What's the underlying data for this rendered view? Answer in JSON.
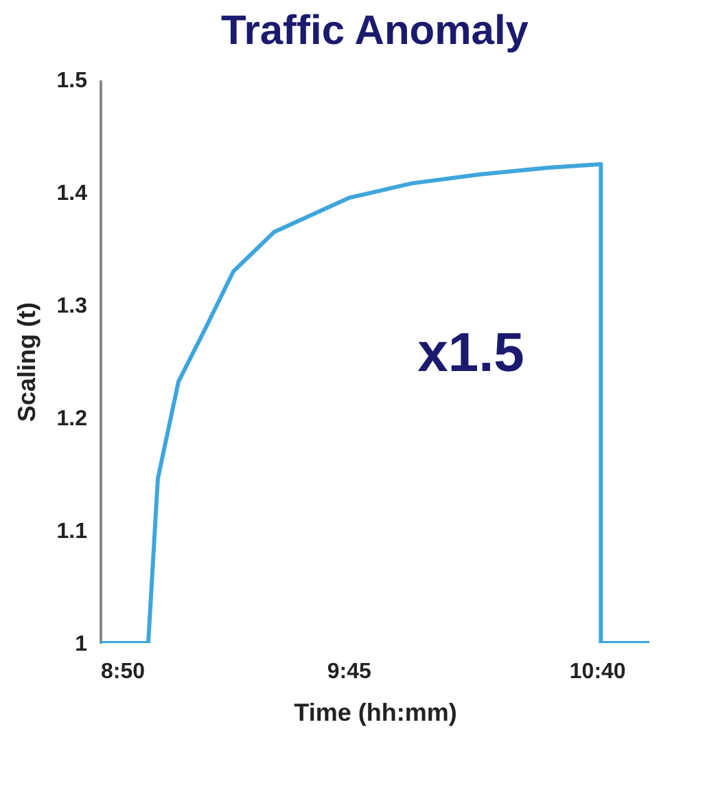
{
  "chart_data": {
    "type": "line",
    "title": "Traffic Anomaly",
    "xlabel": "Time (hh:mm)",
    "ylabel": "Scaling (t)",
    "x": [
      8.8333,
      9.0106,
      9.046,
      9.122,
      9.223,
      9.325,
      9.476,
      9.75,
      9.983,
      10.236,
      10.489,
      10.681,
      10.681,
      10.86
    ],
    "series": [
      {
        "color": "#3ea6dc",
        "values": [
          1,
          1,
          1.146,
          1.232,
          1.28,
          1.33,
          1.365,
          1.395,
          1.408,
          1.416,
          1.422,
          1.425,
          1,
          1
        ]
      }
    ],
    "xlim": [
      8.8333,
      10.86
    ],
    "ylim": [
      1,
      1.5
    ],
    "xticks": [
      {
        "value": 8.8333,
        "label": "8:50"
      },
      {
        "value": 9.75,
        "label": "9:45"
      },
      {
        "value": 10.6667,
        "label": "10:40"
      }
    ],
    "yticks": [
      {
        "value": 1,
        "label": "1"
      },
      1.1,
      1.2,
      1.3,
      1.4,
      1.5
    ],
    "annotations": [
      "x1.5"
    ],
    "grid": false,
    "marker": "none",
    "line_style": "solid"
  }
}
